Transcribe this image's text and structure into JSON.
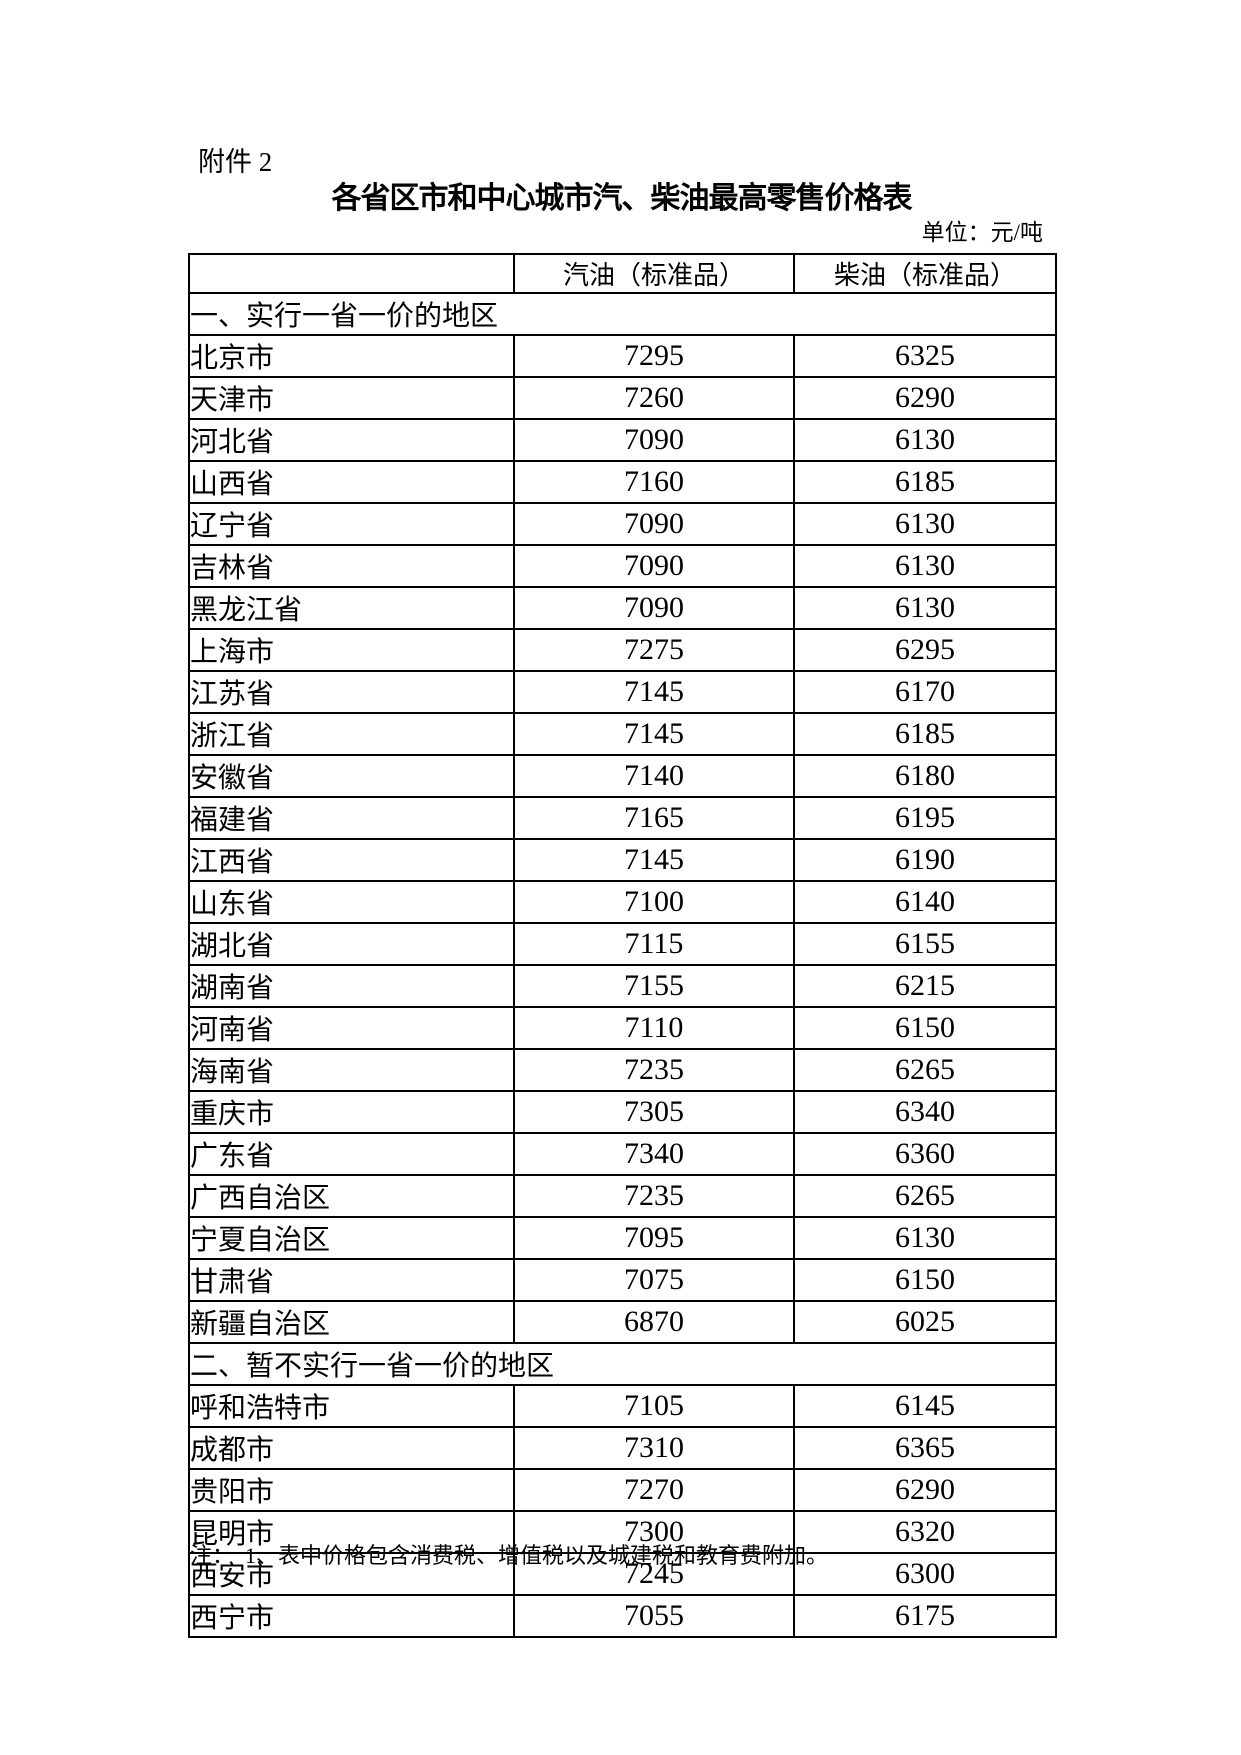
{
  "page": {
    "attachment_label": "附件 2",
    "title": "各省区市和中心城市汽、柴油最高零售价格表",
    "unit_label": "单位：元/吨",
    "note": "注：　1、表中价格包含消费税、增值税以及城建税和教育费附加。"
  },
  "table": {
    "columns": [
      "",
      "汽油（标准品）",
      "柴油（标准品）"
    ],
    "sections": [
      {
        "header": "一、实行一省一价的地区",
        "rows": [
          [
            "北京市",
            7295,
            6325
          ],
          [
            "天津市",
            7260,
            6290
          ],
          [
            "河北省",
            7090,
            6130
          ],
          [
            "山西省",
            7160,
            6185
          ],
          [
            "辽宁省",
            7090,
            6130
          ],
          [
            "吉林省",
            7090,
            6130
          ],
          [
            "黑龙江省",
            7090,
            6130
          ],
          [
            "上海市",
            7275,
            6295
          ],
          [
            "江苏省",
            7145,
            6170
          ],
          [
            "浙江省",
            7145,
            6185
          ],
          [
            "安徽省",
            7140,
            6180
          ],
          [
            "福建省",
            7165,
            6195
          ],
          [
            "江西省",
            7145,
            6190
          ],
          [
            "山东省",
            7100,
            6140
          ],
          [
            "湖北省",
            7115,
            6155
          ],
          [
            "湖南省",
            7155,
            6215
          ],
          [
            "河南省",
            7110,
            6150
          ],
          [
            "海南省",
            7235,
            6265
          ],
          [
            "重庆市",
            7305,
            6340
          ],
          [
            "广东省",
            7340,
            6360
          ],
          [
            "广西自治区",
            7235,
            6265
          ],
          [
            "宁夏自治区",
            7095,
            6130
          ],
          [
            "甘肃省",
            7075,
            6150
          ],
          [
            "新疆自治区",
            6870,
            6025
          ]
        ]
      },
      {
        "header": "二、暂不实行一省一价的地区",
        "rows": [
          [
            "呼和浩特市",
            7105,
            6145
          ],
          [
            "成都市",
            7310,
            6365
          ],
          [
            "贵阳市",
            7270,
            6290
          ],
          [
            "昆明市",
            7300,
            6320
          ],
          [
            "西安市",
            7245,
            6300
          ],
          [
            "西宁市",
            7055,
            6175
          ]
        ]
      }
    ]
  }
}
